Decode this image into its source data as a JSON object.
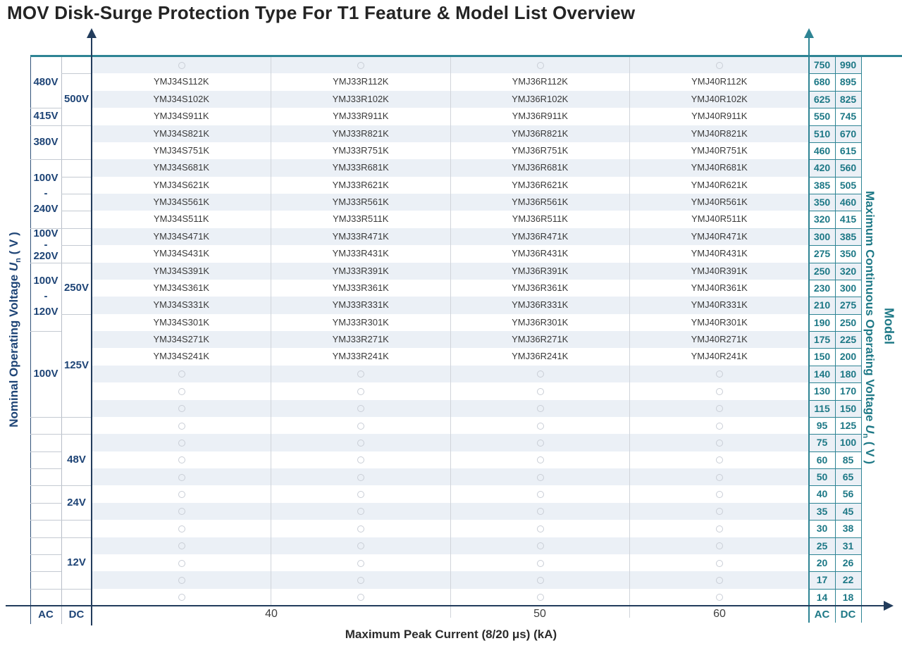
{
  "title": "MOV Disk-Surge Protection Type For T1 Feature & Model List Overview",
  "colors": {
    "navy_text": "#1e4476",
    "teal_text": "#1d7886",
    "teal_border": "#2e8494",
    "axis_navy": "#223c5c",
    "row_shade": "#ebf0f6",
    "grid_gray": "#c4cad2",
    "divider_gray": "#d0d4da",
    "circle_gray": "#c9ced6",
    "model_text": "#3a3a3a"
  },
  "axis_labels": {
    "left": {
      "prefix": "Nominal Operating Voltage ",
      "u": "U",
      "sub": "n",
      "suffix": " ( V )"
    },
    "right": {
      "prefix": "Maximum Continuous Operating Voltage ",
      "u": "U",
      "sub": "n",
      "suffix": " ( V )"
    },
    "right_secondary": "Model",
    "bottom": "Maximum Peak Current (8/20 μs) (kA)"
  },
  "bottom_axis": {
    "left_ac": "AC",
    "left_dc": "DC",
    "right_ac": "AC",
    "right_dc": "DC",
    "ticks": [
      "40",
      "50",
      "60"
    ]
  },
  "chart_data": {
    "type": "table",
    "title": "MOV Disk-Surge Protection Type For T1 Feature & Model List Overview",
    "xlabel": "Maximum Peak Current (8/20 μs) (kA)",
    "ylabel_left": "Nominal Operating Voltage Un ( V )",
    "ylabel_right": "Maximum Continuous Operating Voltage Un ( V )",
    "x_ticks": [
      "40",
      "50",
      "60"
    ],
    "model_column_prefixes": [
      "YMJ34S",
      "YMJ33R",
      "YMJ36R",
      "YMJ40R"
    ],
    "rows": [
      {
        "mcov_ac": "750",
        "mcov_dc": "990",
        "models": []
      },
      {
        "mcov_ac": "680",
        "mcov_dc": "895",
        "models": [
          "YMJ34S112K",
          "YMJ33R112K",
          "YMJ36R112K",
          "YMJ40R112K"
        ]
      },
      {
        "mcov_ac": "625",
        "mcov_dc": "825",
        "models": [
          "YMJ34S102K",
          "YMJ33R102K",
          "YMJ36R102K",
          "YMJ40R102K"
        ]
      },
      {
        "mcov_ac": "550",
        "mcov_dc": "745",
        "models": [
          "YMJ34S911K",
          "YMJ33R911K",
          "YMJ36R911K",
          "YMJ40R911K"
        ]
      },
      {
        "mcov_ac": "510",
        "mcov_dc": "670",
        "models": [
          "YMJ34S821K",
          "YMJ33R821K",
          "YMJ36R821K",
          "YMJ40R821K"
        ]
      },
      {
        "mcov_ac": "460",
        "mcov_dc": "615",
        "models": [
          "YMJ34S751K",
          "YMJ33R751K",
          "YMJ36R751K",
          "YMJ40R751K"
        ]
      },
      {
        "mcov_ac": "420",
        "mcov_dc": "560",
        "models": [
          "YMJ34S681K",
          "YMJ33R681K",
          "YMJ36R681K",
          "YMJ40R681K"
        ]
      },
      {
        "mcov_ac": "385",
        "mcov_dc": "505",
        "models": [
          "YMJ34S621K",
          "YMJ33R621K",
          "YMJ36R621K",
          "YMJ40R621K"
        ]
      },
      {
        "mcov_ac": "350",
        "mcov_dc": "460",
        "models": [
          "YMJ34S561K",
          "YMJ33R561K",
          "YMJ36R561K",
          "YMJ40R561K"
        ]
      },
      {
        "mcov_ac": "320",
        "mcov_dc": "415",
        "models": [
          "YMJ34S511K",
          "YMJ33R511K",
          "YMJ36R511K",
          "YMJ40R511K"
        ]
      },
      {
        "mcov_ac": "300",
        "mcov_dc": "385",
        "models": [
          "YMJ34S471K",
          "YMJ33R471K",
          "YMJ36R471K",
          "YMJ40R471K"
        ]
      },
      {
        "mcov_ac": "275",
        "mcov_dc": "350",
        "models": [
          "YMJ34S431K",
          "YMJ33R431K",
          "YMJ36R431K",
          "YMJ40R431K"
        ]
      },
      {
        "mcov_ac": "250",
        "mcov_dc": "320",
        "models": [
          "YMJ34S391K",
          "YMJ33R391K",
          "YMJ36R391K",
          "YMJ40R391K"
        ]
      },
      {
        "mcov_ac": "230",
        "mcov_dc": "300",
        "models": [
          "YMJ34S361K",
          "YMJ33R361K",
          "YMJ36R361K",
          "YMJ40R361K"
        ]
      },
      {
        "mcov_ac": "210",
        "mcov_dc": "275",
        "models": [
          "YMJ34S331K",
          "YMJ33R331K",
          "YMJ36R331K",
          "YMJ40R331K"
        ]
      },
      {
        "mcov_ac": "190",
        "mcov_dc": "250",
        "models": [
          "YMJ34S301K",
          "YMJ33R301K",
          "YMJ36R301K",
          "YMJ40R301K"
        ]
      },
      {
        "mcov_ac": "175",
        "mcov_dc": "225",
        "models": [
          "YMJ34S271K",
          "YMJ33R271K",
          "YMJ36R271K",
          "YMJ40R271K"
        ]
      },
      {
        "mcov_ac": "150",
        "mcov_dc": "200",
        "models": [
          "YMJ34S241K",
          "YMJ33R241K",
          "YMJ36R241K",
          "YMJ40R241K"
        ]
      },
      {
        "mcov_ac": "140",
        "mcov_dc": "180",
        "models": []
      },
      {
        "mcov_ac": "130",
        "mcov_dc": "170",
        "models": []
      },
      {
        "mcov_ac": "115",
        "mcov_dc": "150",
        "models": []
      },
      {
        "mcov_ac": "95",
        "mcov_dc": "125",
        "models": []
      },
      {
        "mcov_ac": "75",
        "mcov_dc": "100",
        "models": []
      },
      {
        "mcov_ac": "60",
        "mcov_dc": "85",
        "models": []
      },
      {
        "mcov_ac": "50",
        "mcov_dc": "65",
        "models": []
      },
      {
        "mcov_ac": "40",
        "mcov_dc": "56",
        "models": []
      },
      {
        "mcov_ac": "35",
        "mcov_dc": "45",
        "models": []
      },
      {
        "mcov_ac": "30",
        "mcov_dc": "38",
        "models": []
      },
      {
        "mcov_ac": "25",
        "mcov_dc": "31",
        "models": []
      },
      {
        "mcov_ac": "20",
        "mcov_dc": "26",
        "models": []
      },
      {
        "mcov_ac": "17",
        "mcov_dc": "22",
        "models": []
      },
      {
        "mcov_ac": "14",
        "mcov_dc": "18",
        "models": []
      }
    ],
    "nominal_ac_cells": [
      {
        "label_lines": [
          "480V"
        ],
        "row_start": 1,
        "row_end": 3
      },
      {
        "label_lines": [
          "415V"
        ],
        "row_start": 4,
        "row_end": 4
      },
      {
        "label_lines": [
          "380V"
        ],
        "row_start": 5,
        "row_end": 6
      },
      {
        "label_lines": [
          "100V",
          "-",
          "240V"
        ],
        "row_start": 7,
        "row_end": 10
      },
      {
        "label_lines": [
          "100V",
          "-",
          "220V"
        ],
        "row_start": 11,
        "row_end": 12
      },
      {
        "label_lines": [
          "100V",
          "-",
          "120V"
        ],
        "row_start": 13,
        "row_end": 16
      },
      {
        "label_lines": [
          "100V"
        ],
        "row_start": 17,
        "row_end": 21
      },
      {
        "label_lines": [],
        "row_start": 22,
        "row_end": 22
      },
      {
        "label_lines": [],
        "row_start": 23,
        "row_end": 23
      },
      {
        "label_lines": [],
        "row_start": 24,
        "row_end": 24
      },
      {
        "label_lines": [],
        "row_start": 25,
        "row_end": 25
      },
      {
        "label_lines": [],
        "row_start": 26,
        "row_end": 26
      },
      {
        "label_lines": [],
        "row_start": 27,
        "row_end": 27
      },
      {
        "label_lines": [],
        "row_start": 28,
        "row_end": 28
      },
      {
        "label_lines": [],
        "row_start": 29,
        "row_end": 29
      },
      {
        "label_lines": [],
        "row_start": 30,
        "row_end": 30
      },
      {
        "label_lines": [],
        "row_start": 31,
        "row_end": 31
      },
      {
        "label_lines": [],
        "row_start": 32,
        "row_end": 32
      }
    ],
    "nominal_dc_cells": [
      {
        "label_lines": [],
        "row_start": 1,
        "row_end": 1
      },
      {
        "label_lines": [
          "500V"
        ],
        "row_start": 2,
        "row_end": 4
      },
      {
        "label_lines": [],
        "row_start": 5,
        "row_end": 6
      },
      {
        "label_lines": [],
        "row_start": 7,
        "row_end": 7
      },
      {
        "label_lines": [],
        "row_start": 8,
        "row_end": 8
      },
      {
        "label_lines": [],
        "row_start": 9,
        "row_end": 9
      },
      {
        "label_lines": [],
        "row_start": 10,
        "row_end": 10
      },
      {
        "label_lines": [],
        "row_start": 11,
        "row_end": 11
      },
      {
        "label_lines": [],
        "row_start": 12,
        "row_end": 12
      },
      {
        "label_lines": [
          "250V"
        ],
        "row_start": 13,
        "row_end": 15
      },
      {
        "label_lines": [
          "125V"
        ],
        "row_start": 16,
        "row_end": 21
      },
      {
        "label_lines": [],
        "row_start": 22,
        "row_end": 22
      },
      {
        "label_lines": [
          "48V"
        ],
        "row_start": 23,
        "row_end": 25
      },
      {
        "label_lines": [
          "24V"
        ],
        "row_start": 26,
        "row_end": 27
      },
      {
        "label_lines": [],
        "row_start": 28,
        "row_end": 28
      },
      {
        "label_lines": [
          "12V"
        ],
        "row_start": 29,
        "row_end": 31
      },
      {
        "label_lines": [],
        "row_start": 32,
        "row_end": 32
      }
    ]
  }
}
